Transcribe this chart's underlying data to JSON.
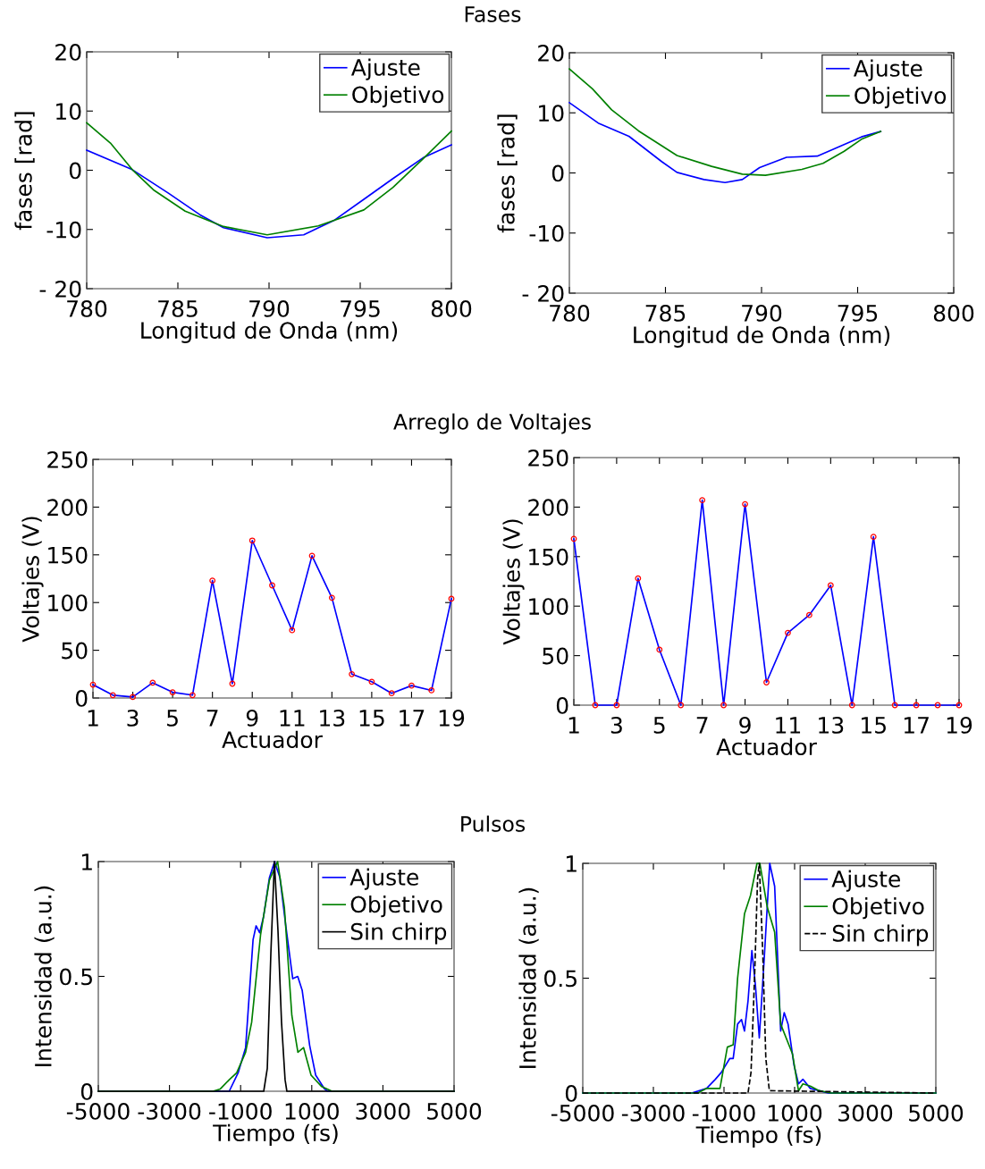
{
  "chart_data": [
    {
      "type": "line",
      "title": "Fases",
      "xlabel": "Longitud de Onda (nm)",
      "ylabel": "fases [rad]",
      "xlim": [
        780,
        800
      ],
      "xticks": [
        780,
        785,
        790,
        795,
        800
      ],
      "ylim": [
        -20,
        20
      ],
      "yticks": [
        {
          "value": -20,
          "label": "- 20"
        },
        -10,
        0,
        10,
        20
      ],
      "legend": "top right",
      "grid": false,
      "series": [
        {
          "name": "Ajuste",
          "color": "#0000ff",
          "x": [
            780,
            782.5,
            784.5,
            786.2,
            787.5,
            789.9,
            791.9,
            793.6,
            795.2,
            796.8,
            798.5,
            800
          ],
          "values": [
            3.4,
            0.1,
            -3.9,
            -7.5,
            -9.7,
            -11.4,
            -10.9,
            -8.4,
            -4.9,
            -1.4,
            2.2,
            4.3
          ]
        },
        {
          "name": "Objetivo",
          "color": "#008000",
          "x": [
            780,
            781.3,
            782.5,
            783.7,
            785.4,
            787.5,
            789.9,
            792.7,
            795.2,
            796.8,
            798.5,
            800
          ],
          "values": [
            8,
            4.6,
            0.1,
            -3.4,
            -6.9,
            -9.5,
            -10.9,
            -9.4,
            -6.7,
            -2.9,
            2.1,
            6.6
          ]
        }
      ]
    },
    {
      "type": "line",
      "xlabel": "Longitud de Onda (nm)",
      "ylabel": "fases [rad]",
      "xlim": [
        780,
        800
      ],
      "xticks": [
        780,
        785,
        790,
        795,
        800
      ],
      "ylim": [
        -20,
        20
      ],
      "yticks": [
        {
          "value": -20,
          "label": "- 20"
        },
        -10,
        0,
        10,
        20
      ],
      "legend": "top right",
      "grid": false,
      "series": [
        {
          "name": "Ajuste",
          "color": "#0000ff",
          "x": [
            780,
            781.5,
            783.1,
            784.8,
            785.6,
            787,
            788.1,
            789,
            789.9,
            791.3,
            792.9,
            794,
            795.2,
            796.2
          ],
          "values": [
            11.7,
            8.3,
            6.1,
            1.9,
            0.1,
            -1.1,
            -1.6,
            -1.1,
            0.9,
            2.6,
            2.8,
            4.3,
            6,
            6.9
          ]
        },
        {
          "name": "Objetivo",
          "color": "#008000",
          "x": [
            780,
            781.2,
            782.2,
            783.6,
            785.6,
            787.4,
            789,
            790.2,
            792.1,
            793.2,
            794.3,
            795.2,
            796.2
          ],
          "values": [
            17.3,
            14,
            10.5,
            7,
            2.9,
            1.1,
            -0.2,
            -0.4,
            0.6,
            1.6,
            3.6,
            5.6,
            6.9
          ]
        }
      ]
    },
    {
      "type": "line",
      "title": "Arreglo de Voltajes",
      "xlabel": "Actuador",
      "ylabel": "Voltajes (V)",
      "xlim": [
        1,
        19
      ],
      "xticks": [
        1,
        3,
        5,
        7,
        9,
        11,
        13,
        15,
        17,
        19
      ],
      "ylim": [
        0,
        250
      ],
      "yticks": [
        0,
        50,
        100,
        150,
        200,
        250
      ],
      "grid": false,
      "series": [
        {
          "type": "line",
          "color": "#0000ff",
          "x": [
            1,
            2,
            3,
            4,
            5,
            6,
            7,
            8,
            9,
            10,
            11,
            12,
            13,
            14,
            15,
            16,
            17,
            18,
            19
          ],
          "values": [
            14,
            3,
            1,
            16,
            6,
            3,
            123,
            15,
            165,
            118,
            71,
            149,
            105,
            25,
            17,
            5,
            13,
            8,
            104
          ]
        },
        {
          "type": "scatter",
          "marker": "circle",
          "color": "#ff0000",
          "x": [
            1,
            2,
            3,
            4,
            5,
            6,
            7,
            8,
            9,
            10,
            11,
            12,
            13,
            14,
            15,
            16,
            17,
            18,
            19
          ],
          "values": [
            14,
            3,
            1,
            16,
            6,
            3,
            123,
            15,
            165,
            118,
            71,
            149,
            105,
            25,
            17,
            5,
            13,
            8,
            104
          ]
        }
      ]
    },
    {
      "type": "line",
      "xlabel": "Actuador",
      "ylabel": "Voltajes (V)",
      "xlim": [
        1,
        19
      ],
      "xticks": [
        1,
        3,
        5,
        7,
        9,
        11,
        13,
        15,
        17,
        19
      ],
      "ylim": [
        0,
        250
      ],
      "yticks": [
        0,
        50,
        100,
        150,
        200,
        250
      ],
      "grid": false,
      "series": [
        {
          "type": "line",
          "color": "#0000ff",
          "x": [
            1,
            2,
            3,
            4,
            5,
            6,
            7,
            8,
            9,
            10,
            11,
            12,
            13,
            14,
            15,
            16,
            17,
            18,
            19
          ],
          "values": [
            168,
            0,
            0,
            128,
            56,
            0,
            207,
            0,
            203,
            23,
            73,
            91,
            121,
            0,
            170,
            0,
            0,
            0,
            0
          ]
        },
        {
          "type": "scatter",
          "marker": "circle",
          "color": "#ff0000",
          "x": [
            1,
            2,
            3,
            4,
            5,
            6,
            7,
            8,
            9,
            10,
            11,
            12,
            13,
            14,
            15,
            16,
            17,
            18,
            19
          ],
          "values": [
            168,
            0,
            0,
            128,
            56,
            0,
            207,
            0,
            203,
            23,
            73,
            91,
            121,
            0,
            170,
            0,
            0,
            0,
            0
          ]
        }
      ]
    },
    {
      "type": "line",
      "title": "Pulsos",
      "xlabel": "Tiempo (fs)",
      "ylabel": "Intensidad (a.u.)",
      "xlim": [
        -5000,
        5000
      ],
      "xticks": [
        -5000,
        -3000,
        -1000,
        1000,
        3000,
        5000
      ],
      "ylim": [
        0,
        1
      ],
      "yticks": [
        0,
        0.5,
        1
      ],
      "legend": "top right",
      "grid": false,
      "series": [
        {
          "name": "Ajuste",
          "color": "#0000ff",
          "x": [
            -5000,
            -1320,
            -1070,
            -860,
            -650,
            -565,
            -465,
            -355,
            -190,
            -45,
            105,
            270,
            465,
            605,
            730,
            940,
            1110,
            1360,
            1450,
            5000
          ],
          "values": [
            0,
            0,
            0.08,
            0.19,
            0.66,
            0.72,
            0.69,
            0.76,
            0.93,
            1,
            0.93,
            0.72,
            0.49,
            0.5,
            0.44,
            0.2,
            0.07,
            0.01,
            0,
            0
          ]
        },
        {
          "name": "Objetivo",
          "color": "#008000",
          "x": [
            -5000,
            -1780,
            -1570,
            -1320,
            -1110,
            -860,
            -690,
            -440,
            -190,
            40,
            230,
            440,
            610,
            770,
            980,
            1280,
            1570,
            5000
          ],
          "values": [
            0,
            0,
            0.01,
            0.05,
            0.08,
            0.17,
            0.3,
            0.68,
            0.92,
            1,
            0.8,
            0.33,
            0.17,
            0.19,
            0.07,
            0.02,
            0,
            0
          ]
        },
        {
          "name": "Sin chirp",
          "color": "#000000",
          "line_style": "solid",
          "x": [
            -5000,
            -350,
            -250,
            -150,
            -50,
            50,
            150,
            250,
            300,
            5000
          ],
          "values": [
            0,
            0,
            0.1,
            0.6,
            1,
            0.7,
            0.3,
            0.05,
            0,
            0
          ]
        }
      ]
    },
    {
      "type": "line",
      "xlabel": "Tiempo (fs)",
      "ylabel": "Intensidad (a.u.)",
      "xlim": [
        -5000,
        5000
      ],
      "xticks": [
        -5000,
        -3000,
        -1000,
        1000,
        3000,
        5000
      ],
      "ylim": [
        0,
        1
      ],
      "yticks": [
        0,
        0.5,
        1
      ],
      "legend": "top right",
      "grid": false,
      "series": [
        {
          "name": "Ajuste",
          "color": "#0000ff",
          "x": [
            -5000,
            -1915,
            -1495,
            -1245,
            -1075,
            -840,
            -740,
            -615,
            -505,
            -420,
            -320,
            -210,
            -110,
            0,
            145,
            295,
            435,
            605,
            705,
            815,
            985,
            1110,
            1235,
            1445,
            1695,
            1950,
            5000
          ],
          "values": [
            0,
            0,
            0.02,
            0.06,
            0.09,
            0.15,
            0.15,
            0.3,
            0.32,
            0.27,
            0.4,
            0.62,
            0.47,
            0.24,
            0.6,
            1,
            0.9,
            0.27,
            0.35,
            0.3,
            0.12,
            0.04,
            0.06,
            0.02,
            0.01,
            0,
            0
          ]
        },
        {
          "name": "Objetivo",
          "color": "#008000",
          "x": [
            -5000,
            -1745,
            -1495,
            -1115,
            -905,
            -740,
            -615,
            -420,
            -250,
            -65,
            15,
            225,
            435,
            605,
            940,
            1110,
            1235,
            1445,
            1695,
            2035,
            5000
          ],
          "values": [
            0,
            0,
            0.02,
            0.02,
            0.2,
            0.21,
            0.5,
            0.78,
            0.86,
            1,
            1,
            0.81,
            0.7,
            0.3,
            0.17,
            0.01,
            0.04,
            0.03,
            0.01,
            0,
            0
          ]
        },
        {
          "name": "Sin chirp",
          "color": "#000000",
          "line_style": "dashed",
          "x": [
            -5000,
            -320,
            -235,
            -135,
            -50,
            0,
            100,
            185,
            285,
            5000
          ],
          "values": [
            0,
            0,
            0.09,
            0.5,
            0.93,
            1,
            0.6,
            0.15,
            0.01,
            0
          ]
        }
      ]
    }
  ]
}
